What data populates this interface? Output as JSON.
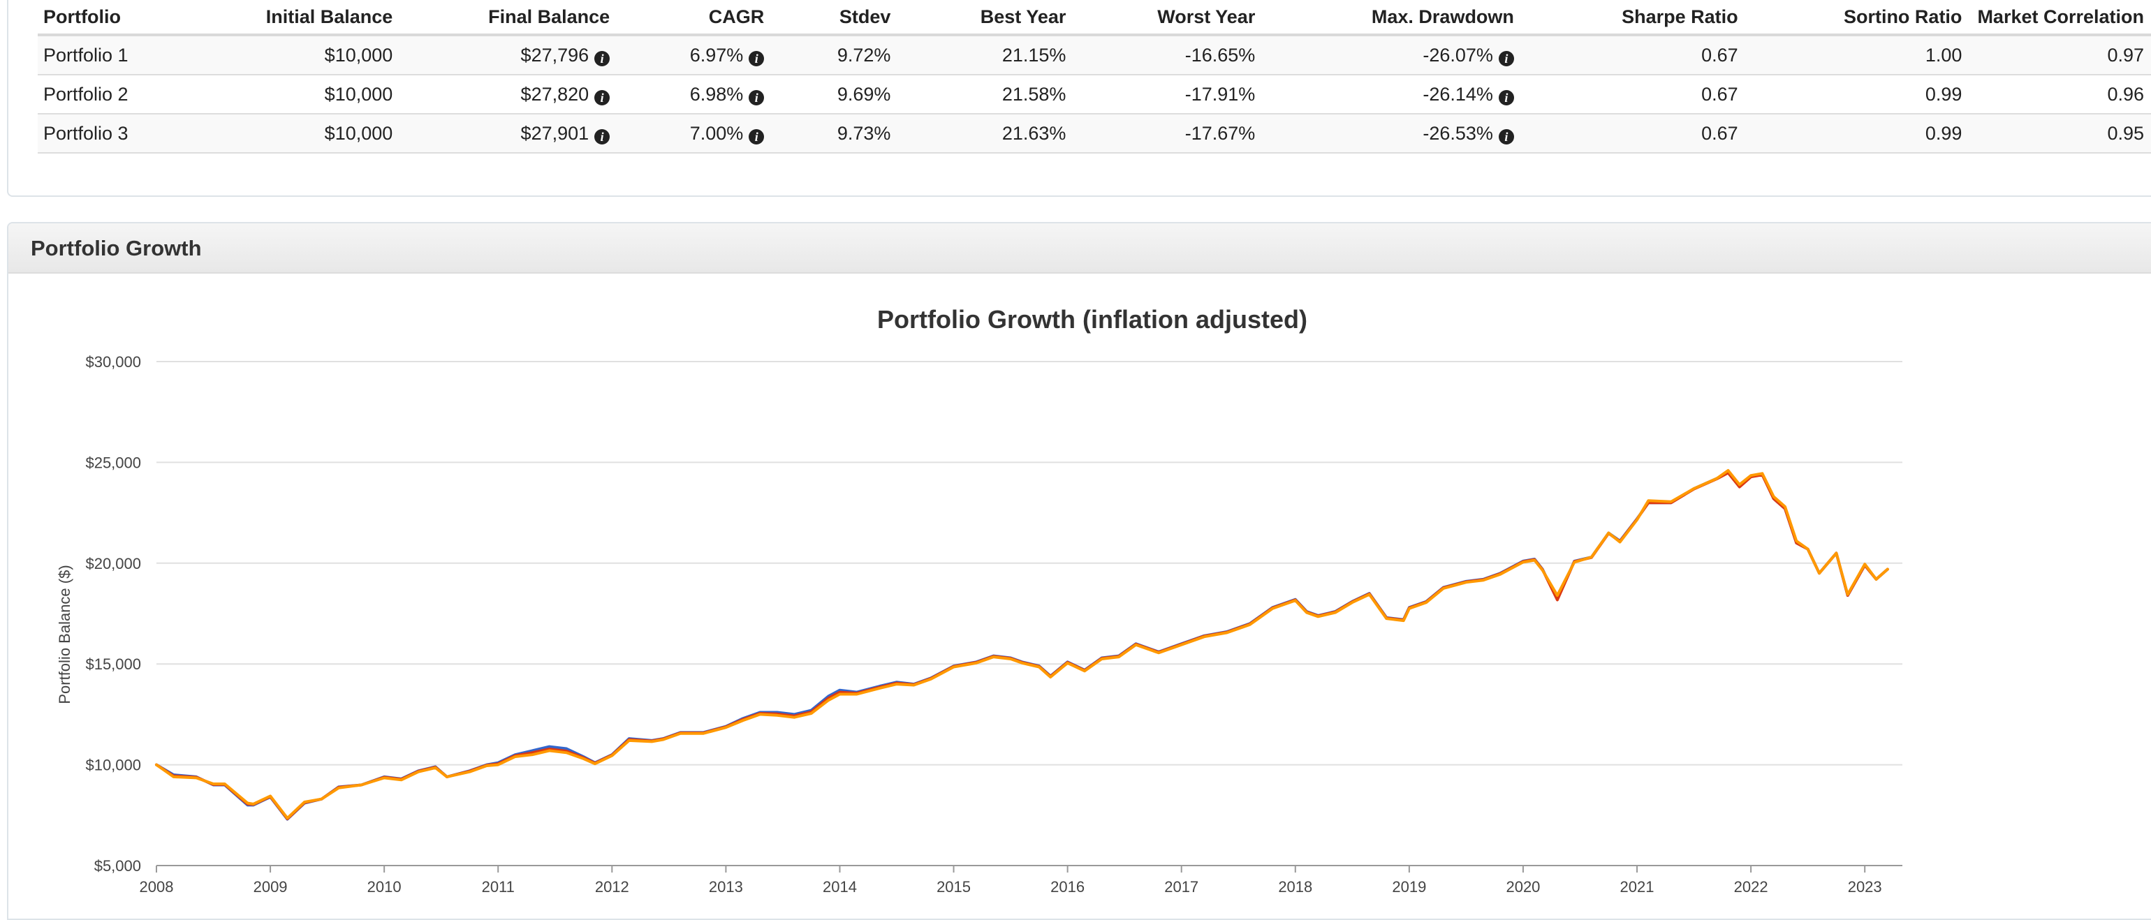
{
  "stats_table": {
    "headers": [
      "Portfolio",
      "Initial Balance",
      "Final Balance",
      "CAGR",
      "Stdev",
      "Best Year",
      "Worst Year",
      "Max. Drawdown",
      "Sharpe Ratio",
      "Sortino Ratio",
      "Market Correlation"
    ],
    "rows": [
      {
        "name": "Portfolio 1",
        "initial": "$10,000",
        "final": "$27,796",
        "cagr": "6.97%",
        "stdev": "9.72%",
        "best": "21.15%",
        "worst": "-16.65%",
        "drawdown": "-26.07%",
        "sharpe": "0.67",
        "sortino": "1.00",
        "correlation": "0.97"
      },
      {
        "name": "Portfolio 2",
        "initial": "$10,000",
        "final": "$27,820",
        "cagr": "6.98%",
        "stdev": "9.69%",
        "best": "21.58%",
        "worst": "-17.91%",
        "drawdown": "-26.14%",
        "sharpe": "0.67",
        "sortino": "0.99",
        "correlation": "0.96"
      },
      {
        "name": "Portfolio 3",
        "initial": "$10,000",
        "final": "$27,901",
        "cagr": "7.00%",
        "stdev": "9.73%",
        "best": "21.63%",
        "worst": "-17.67%",
        "drawdown": "-26.53%",
        "sharpe": "0.67",
        "sortino": "0.99",
        "correlation": "0.95"
      }
    ],
    "info_icon": "info-circle-icon"
  },
  "growth_panel": {
    "title": "Portfolio Growth"
  },
  "chart_data": {
    "type": "line",
    "title": "Portfolio Growth (inflation adjusted)",
    "ylabel": "Portfolio Balance ($)",
    "xlabel": "",
    "xlim": [
      2008,
      2023.33
    ],
    "ylim": [
      5000,
      30000
    ],
    "y_ticks": [
      5000,
      10000,
      15000,
      20000,
      25000,
      30000
    ],
    "y_tick_labels": [
      "$5,000",
      "$10,000",
      "$15,000",
      "$20,000",
      "$25,000",
      "$30,000"
    ],
    "x_ticks": [
      2008,
      2009,
      2010,
      2011,
      2012,
      2013,
      2014,
      2015,
      2016,
      2017,
      2018,
      2019,
      2020,
      2021,
      2022,
      2023
    ],
    "x_tick_labels": [
      "2008",
      "2009",
      "2010",
      "2011",
      "2012",
      "2013",
      "2014",
      "2015",
      "2016",
      "2017",
      "2018",
      "2019",
      "2020",
      "2021",
      "2022",
      "2023"
    ],
    "grid": true,
    "legend": "none",
    "series": [
      {
        "color": "#3366cc",
        "x": [
          2008.0,
          2008.15,
          2008.35,
          2008.5,
          2008.6,
          2008.8,
          2008.85,
          2009.0,
          2009.15,
          2009.3,
          2009.45,
          2009.6,
          2009.8,
          2010.0,
          2010.15,
          2010.3,
          2010.45,
          2010.55,
          2010.75,
          2010.9,
          2011.0,
          2011.15,
          2011.3,
          2011.45,
          2011.6,
          2011.75,
          2011.85,
          2012.0,
          2012.15,
          2012.35,
          2012.45,
          2012.6,
          2012.8,
          2013.0,
          2013.15,
          2013.3,
          2013.45,
          2013.6,
          2013.75,
          2013.9,
          2014.0,
          2014.15,
          2014.35,
          2014.5,
          2014.65,
          2014.8,
          2015.0,
          2015.2,
          2015.35,
          2015.5,
          2015.6,
          2015.75,
          2015.85,
          2016.0,
          2016.15,
          2016.3,
          2016.45,
          2016.6,
          2016.8,
          2017.0,
          2017.2,
          2017.4,
          2017.6,
          2017.8,
          2018.0,
          2018.1,
          2018.2,
          2018.35,
          2018.5,
          2018.65,
          2018.8,
          2018.95,
          2019.0,
          2019.15,
          2019.3,
          2019.5,
          2019.65,
          2019.8,
          2020.0,
          2020.1,
          2020.17,
          2020.3,
          2020.45,
          2020.6,
          2020.75,
          2020.85,
          2021.0,
          2021.1,
          2021.3,
          2021.5,
          2021.7,
          2021.8,
          2021.9,
          2022.0,
          2022.1,
          2022.2,
          2022.3,
          2022.4,
          2022.5,
          2022.6,
          2022.75,
          2022.85,
          2023.0,
          2023.1,
          2023.2
        ],
        "y": [
          10000,
          9500,
          9400,
          9000,
          9000,
          8000,
          8000,
          8400,
          7300,
          8100,
          8300,
          8900,
          9000,
          9400,
          9300,
          9700,
          9900,
          9400,
          9700,
          10000,
          10100,
          10500,
          10700,
          10900,
          10800,
          10400,
          10100,
          10500,
          11300,
          11200,
          11300,
          11600,
          11600,
          11900,
          12300,
          12600,
          12600,
          12500,
          12700,
          13400,
          13700,
          13600,
          13900,
          14100,
          14000,
          14300,
          14900,
          15100,
          15400,
          15300,
          15100,
          14900,
          14400,
          15100,
          14700,
          15300,
          15400,
          16000,
          15600,
          16000,
          16400,
          16600,
          17000,
          17800,
          18200,
          17600,
          17400,
          17600,
          18100,
          18500,
          17300,
          17200,
          17800,
          18100,
          18800,
          19100,
          19200,
          19500,
          20100,
          20200,
          19700,
          18200,
          20100,
          20300,
          21500,
          21100,
          22200,
          23000,
          23000,
          23700,
          24200,
          24500,
          23800,
          24300,
          24400,
          23200,
          22700,
          21000,
          20700,
          19500,
          20500,
          18400,
          19900,
          19200,
          19700
        ]
      },
      {
        "color": "#dc3912",
        "x": [
          2008.0,
          2008.15,
          2008.35,
          2008.5,
          2008.6,
          2008.8,
          2008.85,
          2009.0,
          2009.15,
          2009.3,
          2009.45,
          2009.6,
          2009.8,
          2010.0,
          2010.15,
          2010.3,
          2010.45,
          2010.55,
          2010.75,
          2010.9,
          2011.0,
          2011.15,
          2011.3,
          2011.45,
          2011.6,
          2011.75,
          2011.85,
          2012.0,
          2012.15,
          2012.35,
          2012.45,
          2012.6,
          2012.8,
          2013.0,
          2013.15,
          2013.3,
          2013.45,
          2013.6,
          2013.75,
          2013.9,
          2014.0,
          2014.15,
          2014.35,
          2014.5,
          2014.65,
          2014.8,
          2015.0,
          2015.2,
          2015.35,
          2015.5,
          2015.6,
          2015.75,
          2015.85,
          2016.0,
          2016.15,
          2016.3,
          2016.45,
          2016.6,
          2016.8,
          2017.0,
          2017.2,
          2017.4,
          2017.6,
          2017.8,
          2018.0,
          2018.1,
          2018.2,
          2018.35,
          2018.5,
          2018.65,
          2018.8,
          2018.95,
          2019.0,
          2019.15,
          2019.3,
          2019.5,
          2019.65,
          2019.8,
          2020.0,
          2020.1,
          2020.17,
          2020.3,
          2020.45,
          2020.6,
          2020.75,
          2020.85,
          2021.0,
          2021.1,
          2021.3,
          2021.5,
          2021.7,
          2021.8,
          2021.9,
          2022.0,
          2022.1,
          2022.2,
          2022.3,
          2022.4,
          2022.5,
          2022.6,
          2022.75,
          2022.85,
          2023.0,
          2023.1,
          2023.2
        ],
        "y": [
          10000,
          9450,
          9380,
          9020,
          9020,
          8050,
          8030,
          8420,
          7320,
          8120,
          8300,
          8880,
          9000,
          9380,
          9280,
          9680,
          9880,
          9400,
          9680,
          9980,
          10050,
          10450,
          10600,
          10780,
          10680,
          10350,
          10080,
          10480,
          11250,
          11180,
          11280,
          11580,
          11580,
          11880,
          12250,
          12550,
          12520,
          12420,
          12620,
          13300,
          13600,
          13550,
          13850,
          14050,
          13980,
          14280,
          14880,
          15080,
          15380,
          15280,
          15080,
          14880,
          14380,
          15080,
          14680,
          15280,
          15380,
          15980,
          15580,
          15980,
          16380,
          16580,
          16980,
          17780,
          18180,
          17580,
          17380,
          17580,
          18080,
          18480,
          17280,
          17180,
          17780,
          18080,
          18780,
          19080,
          19180,
          19480,
          20080,
          20180,
          19680,
          18180,
          20080,
          20280,
          21480,
          21080,
          22180,
          23000,
          23000,
          23680,
          24180,
          24480,
          23780,
          24280,
          24380,
          23200,
          22700,
          21000,
          20700,
          19500,
          20500,
          18400,
          19900,
          19200,
          19700
        ]
      },
      {
        "color": "#ff9900",
        "x": [
          2008.0,
          2008.15,
          2008.35,
          2008.5,
          2008.6,
          2008.8,
          2008.85,
          2009.0,
          2009.15,
          2009.3,
          2009.45,
          2009.6,
          2009.8,
          2010.0,
          2010.15,
          2010.3,
          2010.45,
          2010.55,
          2010.75,
          2010.9,
          2011.0,
          2011.15,
          2011.3,
          2011.45,
          2011.6,
          2011.75,
          2011.85,
          2012.0,
          2012.15,
          2012.35,
          2012.45,
          2012.6,
          2012.8,
          2013.0,
          2013.15,
          2013.3,
          2013.45,
          2013.6,
          2013.75,
          2013.9,
          2014.0,
          2014.15,
          2014.35,
          2014.5,
          2014.65,
          2014.8,
          2015.0,
          2015.2,
          2015.35,
          2015.5,
          2015.6,
          2015.75,
          2015.85,
          2016.0,
          2016.15,
          2016.3,
          2016.45,
          2016.6,
          2016.8,
          2017.0,
          2017.2,
          2017.4,
          2017.6,
          2017.8,
          2018.0,
          2018.1,
          2018.2,
          2018.35,
          2018.5,
          2018.65,
          2018.8,
          2018.95,
          2019.0,
          2019.15,
          2019.3,
          2019.5,
          2019.65,
          2019.8,
          2020.0,
          2020.1,
          2020.17,
          2020.3,
          2020.45,
          2020.6,
          2020.75,
          2020.85,
          2021.0,
          2021.1,
          2021.3,
          2021.5,
          2021.7,
          2021.8,
          2021.9,
          2022.0,
          2022.1,
          2022.2,
          2022.3,
          2022.4,
          2022.5,
          2022.6,
          2022.75,
          2022.85,
          2023.0,
          2023.1,
          2023.2
        ],
        "y": [
          10000,
          9400,
          9350,
          9050,
          9050,
          8100,
          8050,
          8450,
          7350,
          8150,
          8300,
          8850,
          9000,
          9350,
          9250,
          9650,
          9850,
          9400,
          9650,
          9950,
          10000,
          10400,
          10500,
          10700,
          10600,
          10300,
          10050,
          10450,
          11200,
          11150,
          11250,
          11550,
          11550,
          11850,
          12200,
          12500,
          12450,
          12350,
          12550,
          13200,
          13500,
          13500,
          13800,
          14000,
          13950,
          14250,
          14850,
          15050,
          15350,
          15250,
          15050,
          14850,
          14350,
          15050,
          14650,
          15250,
          15350,
          15950,
          15550,
          15950,
          16350,
          16550,
          16950,
          17750,
          18150,
          17550,
          17350,
          17550,
          18050,
          18450,
          17250,
          17150,
          17750,
          18050,
          18750,
          19050,
          19150,
          19450,
          20050,
          20150,
          19650,
          18400,
          20050,
          20300,
          21500,
          21050,
          22150,
          23100,
          23050,
          23700,
          24200,
          24600,
          23900,
          24350,
          24450,
          23300,
          22800,
          21100,
          20700,
          19500,
          20500,
          18450,
          19950,
          19200,
          19700
        ]
      }
    ]
  }
}
